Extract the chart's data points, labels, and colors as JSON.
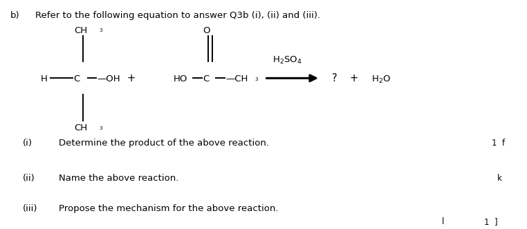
{
  "bg_color": "#ffffff",
  "title_b": "b)",
  "title_text": "Refer to the following equation to answer Q3b (i), (ii) and (iii).",
  "question_i_num": "(i)",
  "question_i_text": "Determine the product of the above reaction.",
  "question_ii_num": "(ii)",
  "question_ii_text": "Name the above reaction.",
  "question_iii_num": "(iii)",
  "question_iii_text": "Propose the mechanism for the above reaction.",
  "mark_i": "1  f",
  "mark_ii": "k",
  "mark_iii_left": "l",
  "mark_iii_right": "1  ]",
  "font_size": 9.5,
  "text_color": "#000000",
  "lw": 1.4
}
